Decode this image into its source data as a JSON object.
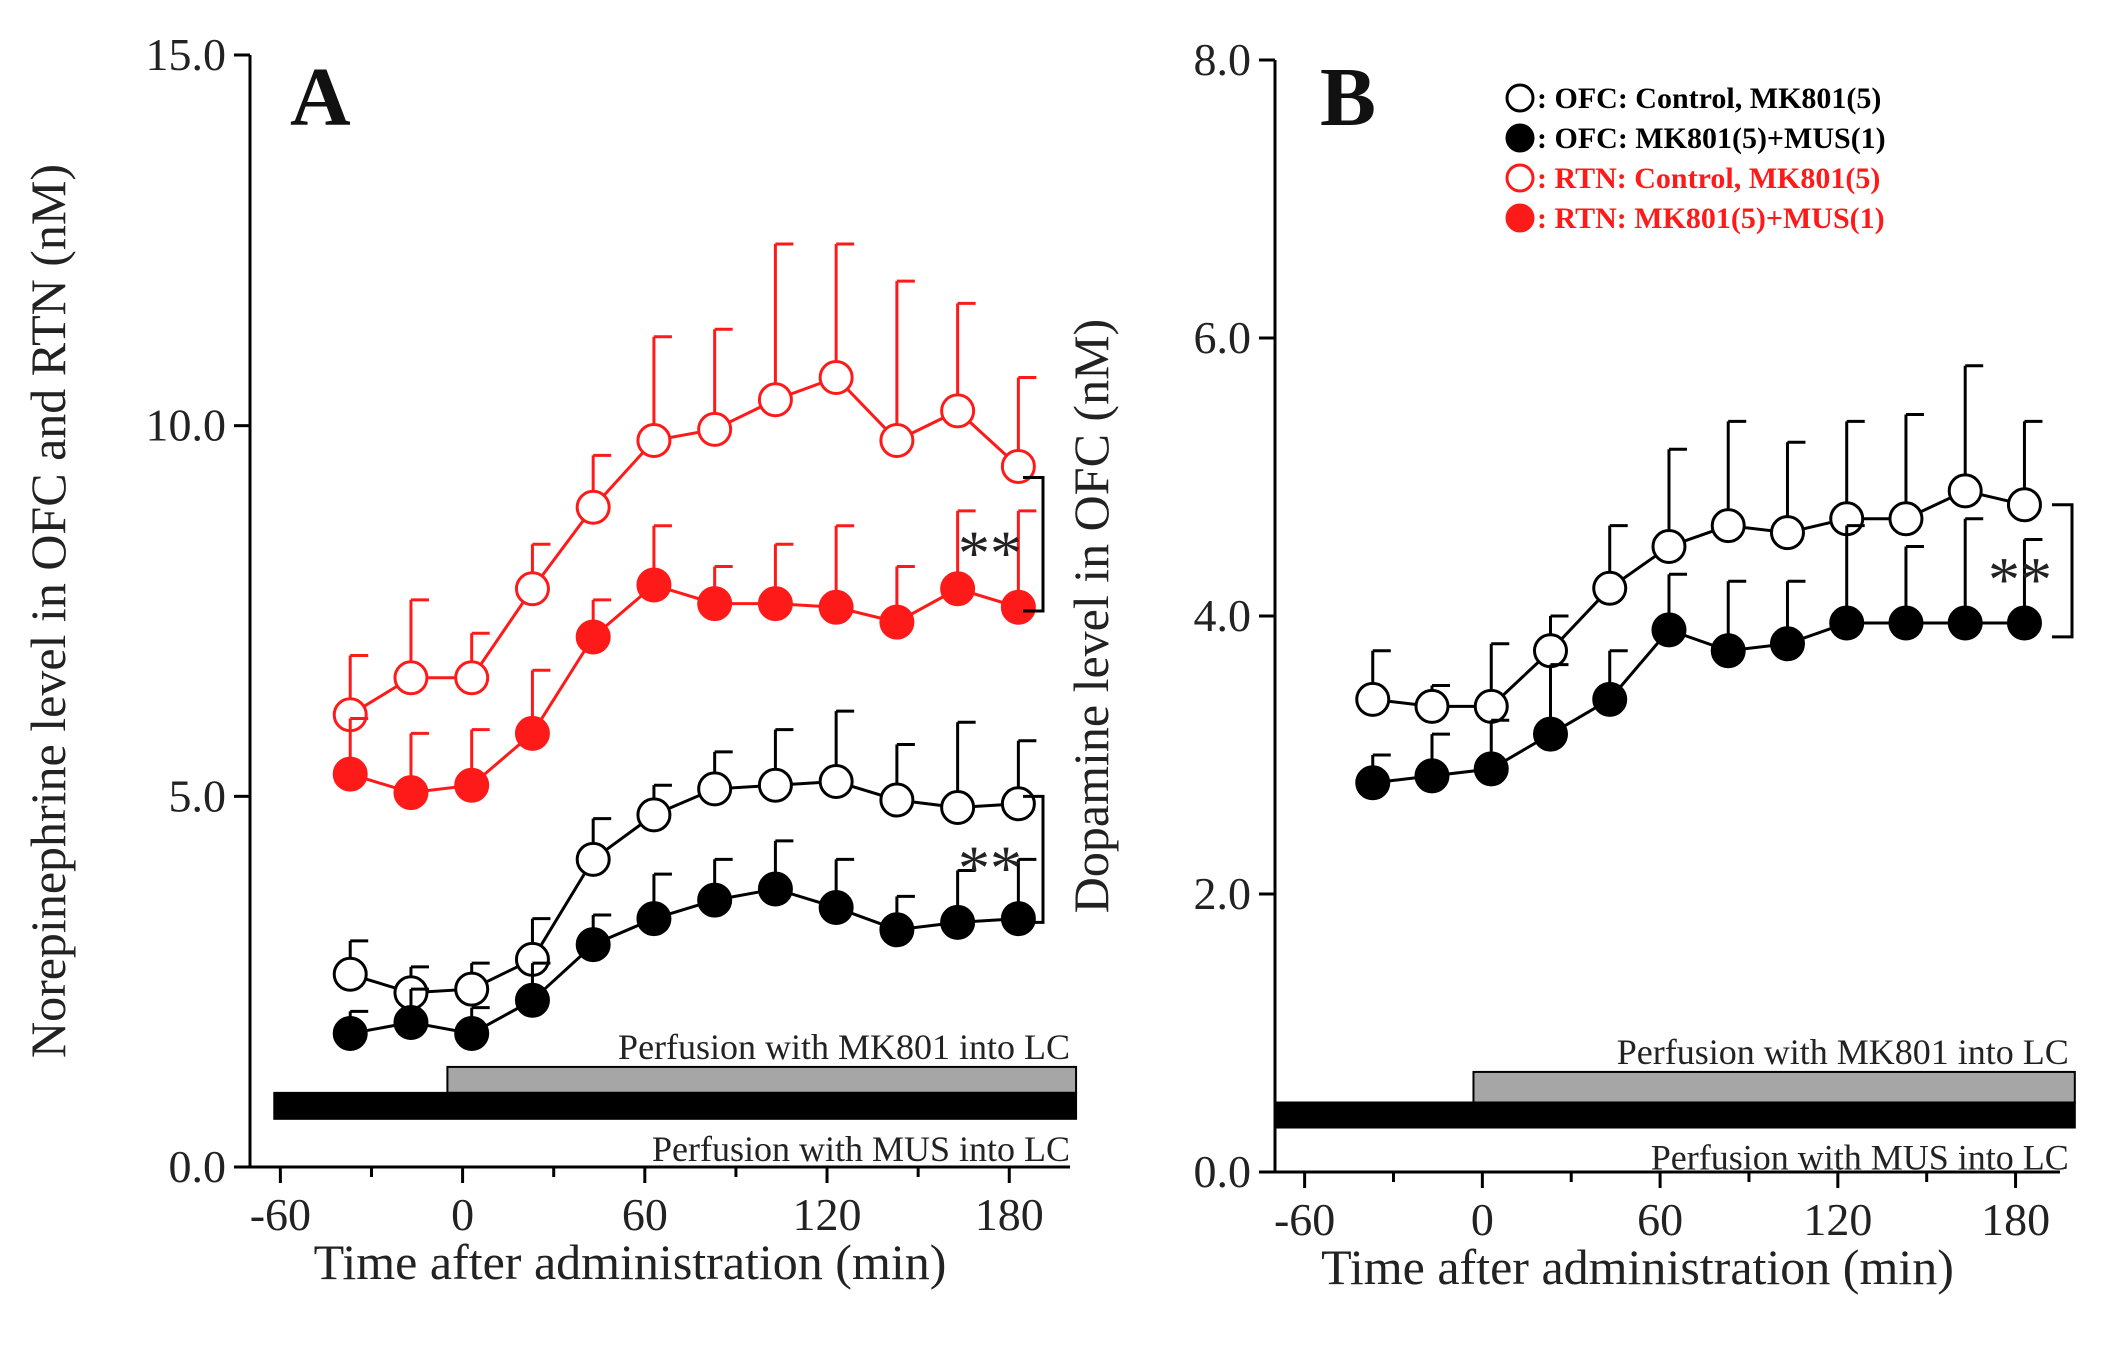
{
  "colors": {
    "black": "#000000",
    "red": "#ff1a1a",
    "gray_bar": "#a6a6a6"
  },
  "legend": [
    {
      "label": ": OFC: Control, MK801(5)",
      "marker": "open-circle",
      "color": "#000000"
    },
    {
      "label": ": OFC: MK801(5)+MUS(1)",
      "marker": "filled-circle",
      "color": "#000000"
    },
    {
      "label": ": RTN: Control, MK801(5)",
      "marker": "open-circle",
      "color": "#ff1a1a"
    },
    {
      "label": ": RTN: MK801(5)+MUS(1)",
      "marker": "filled-circle",
      "color": "#ff1a1a"
    }
  ],
  "chart_data": [
    {
      "panel_label": "A",
      "type": "line",
      "ylabel": "Norepinephrine level in OFC and RTN (nM)",
      "xlabel": "Time after administration (min)",
      "ylim": [
        0,
        15
      ],
      "xlim": [
        -70,
        200
      ],
      "yticks": [
        "0.0",
        "5.0",
        "10.0",
        "15.0"
      ],
      "ytick_values": [
        0,
        5,
        10,
        15
      ],
      "xticks": [
        "-60",
        "0",
        "60",
        "120",
        "180"
      ],
      "xtick_values": [
        -60,
        0,
        60,
        120,
        180
      ],
      "x": [
        -37,
        -17,
        3,
        23,
        43,
        63,
        83,
        103,
        123,
        143,
        163,
        183
      ],
      "series": [
        {
          "name": "RTN: Control, MK801(5)",
          "color": "#ff1a1a",
          "filled": false,
          "values": [
            6.1,
            6.6,
            6.6,
            7.8,
            8.9,
            9.8,
            9.95,
            10.35,
            10.65,
            9.8,
            10.2,
            9.45
          ],
          "errors": [
            0.8,
            1.05,
            0.6,
            0.6,
            0.7,
            1.4,
            1.35,
            2.1,
            1.8,
            2.15,
            1.45,
            1.2
          ]
        },
        {
          "name": "RTN: MK801(5)+MUS(1)",
          "color": "#ff1a1a",
          "filled": true,
          "values": [
            5.3,
            5.05,
            5.15,
            5.85,
            7.15,
            7.85,
            7.6,
            7.6,
            7.55,
            7.35,
            7.8,
            7.55
          ],
          "errors": [
            0.75,
            0.8,
            0.75,
            0.85,
            0.5,
            0.8,
            0.5,
            0.8,
            1.1,
            0.75,
            1.05,
            1.3
          ]
        },
        {
          "name": "OFC: Control, MK801(5)",
          "color": "#000000",
          "filled": false,
          "values": [
            2.6,
            2.35,
            2.4,
            2.8,
            4.15,
            4.75,
            5.1,
            5.15,
            5.2,
            4.95,
            4.85,
            4.9
          ],
          "errors": [
            0.45,
            0.35,
            0.35,
            0.55,
            0.55,
            0.4,
            0.5,
            0.75,
            0.95,
            0.75,
            1.15,
            0.85
          ]
        },
        {
          "name": "OFC: MK801(5)+MUS(1)",
          "color": "#000000",
          "filled": true,
          "values": [
            1.8,
            1.95,
            1.8,
            2.25,
            3.0,
            3.35,
            3.6,
            3.75,
            3.5,
            3.2,
            3.3,
            3.35
          ],
          "errors": [
            0.3,
            0.45,
            0.35,
            0.5,
            0.4,
            0.6,
            0.55,
            0.65,
            0.65,
            0.45,
            0.7,
            0.8
          ]
        }
      ],
      "significance": [
        {
          "label": "**",
          "y_top": 9.3,
          "y_bottom": 7.5
        },
        {
          "label": "**",
          "y_top": 5.0,
          "y_bottom": 3.3
        }
      ],
      "perfusion_bars": [
        {
          "label": "Perfusion with MK801 into LC",
          "x_start": -5,
          "x_end": 202,
          "y_low": 1.0,
          "y_high": 1.35,
          "color": "#a6a6a6"
        },
        {
          "label": "Perfusion with MUS  into LC",
          "x_start": -62,
          "x_end": 202,
          "y_low": 0.65,
          "y_high": 1.0,
          "color": "#000000"
        }
      ]
    },
    {
      "panel_label": "B",
      "type": "line",
      "ylabel": "Dopamine level in OFC  (nM)",
      "xlabel": "Time after administration (min)",
      "ylim": [
        0,
        8
      ],
      "xlim": [
        -70,
        195
      ],
      "yticks": [
        "0.0",
        "2.0",
        "4.0",
        "6.0",
        "8.0"
      ],
      "ytick_values": [
        0,
        2,
        4,
        6,
        8
      ],
      "xticks": [
        "-60",
        "0",
        "60",
        "120",
        "180"
      ],
      "xtick_values": [
        -60,
        0,
        60,
        120,
        180
      ],
      "x": [
        -37,
        -17,
        3,
        23,
        43,
        63,
        83,
        103,
        123,
        143,
        163,
        183
      ],
      "series": [
        {
          "name": "OFC: Control, MK801(5)",
          "color": "#000000",
          "filled": false,
          "values": [
            3.4,
            3.35,
            3.35,
            3.75,
            4.2,
            4.5,
            4.65,
            4.6,
            4.7,
            4.7,
            4.9,
            4.8
          ],
          "errors": [
            0.35,
            0.15,
            0.45,
            0.25,
            0.45,
            0.7,
            0.75,
            0.65,
            0.7,
            0.75,
            0.9,
            0.6
          ]
        },
        {
          "name": "OFC: MK801(5)+MUS(1)",
          "color": "#000000",
          "filled": true,
          "values": [
            2.8,
            2.85,
            2.9,
            3.15,
            3.4,
            3.9,
            3.75,
            3.8,
            3.95,
            3.95,
            3.95,
            3.95
          ],
          "errors": [
            0.2,
            0.3,
            0.35,
            0.5,
            0.35,
            0.4,
            0.5,
            0.45,
            0.7,
            0.55,
            0.75,
            0.6
          ]
        }
      ],
      "significance": [
        {
          "label": "**",
          "y_top": 4.8,
          "y_bottom": 3.85
        }
      ],
      "perfusion_bars": [
        {
          "label": "Perfusion with MK801 into LC",
          "x_start": -3,
          "x_end": 200,
          "y_low": 0.5,
          "y_high": 0.72,
          "color": "#a6a6a6"
        },
        {
          "label": "Perfusion with MUS  into LC",
          "x_start": -70,
          "x_end": 200,
          "y_low": 0.32,
          "y_high": 0.5,
          "color": "#000000"
        }
      ]
    }
  ]
}
